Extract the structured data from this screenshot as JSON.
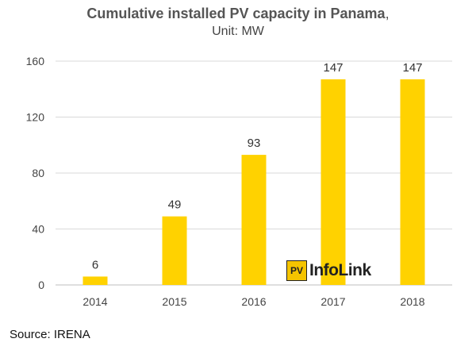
{
  "header": {
    "title": "Cumulative installed PV capacity in Panama",
    "title_suffix": ",",
    "subtitle": "Unit: MW"
  },
  "source": "Source: IRENA",
  "logo": {
    "box_text": "PV",
    "text": "InfoLink"
  },
  "colors": {
    "bar": "#ffd200",
    "grid": "#d9d9d9",
    "axis": "#bfbfbf"
  },
  "chart_data": {
    "type": "bar",
    "title": "Cumulative installed PV capacity in Panama",
    "subtitle": "Unit: MW",
    "categories": [
      "2014",
      "2015",
      "2016",
      "2017",
      "2018"
    ],
    "values": [
      6,
      49,
      93,
      147,
      147
    ],
    "data_labels": [
      "6",
      "49",
      "93",
      "147",
      "147"
    ],
    "ylim": [
      0,
      160
    ],
    "yticks": [
      0,
      40,
      80,
      120,
      160
    ],
    "xlabel": "",
    "ylabel": "",
    "grid": true
  }
}
